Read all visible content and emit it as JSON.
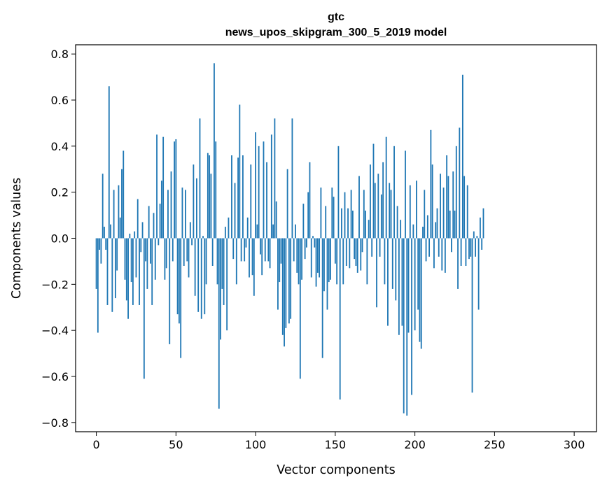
{
  "chart_data": {
    "type": "bar",
    "title": "gtc",
    "subtitle": "news_upos_skipgram_300_5_2019 model",
    "xlabel": "Vector components",
    "ylabel": "Components values",
    "xlim": [
      -13,
      314
    ],
    "ylim": [
      -0.84,
      0.84
    ],
    "xticks": [
      0,
      50,
      100,
      150,
      200,
      250,
      300
    ],
    "yticks": [
      -0.8,
      -0.6,
      -0.4,
      -0.2,
      0.0,
      0.2,
      0.4,
      0.6,
      0.8
    ],
    "ytick_labels": [
      "−0.8",
      "−0.6",
      "−0.4",
      "−0.2",
      "0.0",
      "0.2",
      "0.4",
      "0.6",
      "0.8"
    ],
    "bar_color": "#1f77b4",
    "grid": false,
    "legend": "none",
    "values": [
      -0.22,
      -0.41,
      -0.05,
      -0.11,
      0.28,
      0.05,
      -0.05,
      -0.29,
      0.66,
      0.06,
      -0.32,
      0.21,
      -0.26,
      -0.14,
      0.23,
      0.09,
      0.3,
      0.38,
      -0.18,
      -0.27,
      -0.35,
      0.02,
      -0.19,
      -0.29,
      0.03,
      -0.17,
      0.17,
      -0.29,
      -0.06,
      0.07,
      -0.61,
      -0.1,
      -0.22,
      0.14,
      -0.11,
      -0.29,
      0.11,
      -0.18,
      0.45,
      -0.03,
      0.15,
      0.25,
      0.44,
      -0.18,
      -0.13,
      0.21,
      -0.46,
      0.29,
      -0.1,
      0.42,
      0.43,
      -0.33,
      -0.37,
      -0.52,
      0.22,
      -0.12,
      0.21,
      -0.1,
      -0.17,
      0.07,
      -0.03,
      0.32,
      -0.25,
      0.26,
      -0.32,
      0.52,
      -0.35,
      0.01,
      -0.33,
      -0.2,
      0.37,
      0.36,
      0.28,
      -0.12,
      0.76,
      0.42,
      -0.2,
      -0.74,
      -0.44,
      -0.22,
      -0.29,
      0.05,
      -0.4,
      0.09,
      0.0,
      0.36,
      -0.09,
      0.24,
      -0.2,
      0.35,
      0.58,
      -0.1,
      0.36,
      -0.1,
      -0.04,
      0.09,
      -0.17,
      0.32,
      -0.16,
      -0.25,
      0.46,
      0.06,
      0.4,
      -0.07,
      -0.16,
      0.42,
      -0.1,
      0.33,
      -0.1,
      -0.13,
      0.45,
      0.06,
      0.52,
      0.16,
      -0.31,
      -0.19,
      -0.11,
      -0.42,
      -0.47,
      -0.39,
      0.3,
      -0.37,
      -0.35,
      0.52,
      -0.1,
      0.06,
      -0.15,
      -0.2,
      -0.61,
      -0.18,
      0.15,
      -0.09,
      -0.04,
      0.2,
      0.33,
      -0.17,
      0.01,
      -0.04,
      -0.21,
      -0.15,
      -0.17,
      0.22,
      -0.52,
      -0.23,
      0.14,
      -0.31,
      -0.19,
      -0.18,
      0.22,
      0.18,
      -0.11,
      -0.2,
      0.4,
      -0.7,
      0.13,
      -0.2,
      0.2,
      -0.12,
      0.13,
      -0.13,
      0.21,
      0.12,
      -0.09,
      -0.12,
      -0.15,
      0.27,
      -0.14,
      -0.06,
      0.21,
      0.12,
      -0.2,
      0.08,
      0.32,
      -0.08,
      0.41,
      0.24,
      -0.3,
      0.28,
      -0.08,
      0.19,
      0.33,
      -0.2,
      0.44,
      -0.38,
      0.24,
      0.21,
      -0.22,
      0.4,
      -0.27,
      0.14,
      -0.42,
      0.08,
      -0.38,
      -0.76,
      0.38,
      -0.77,
      -0.41,
      0.23,
      -0.68,
      0.06,
      -0.4,
      0.25,
      -0.31,
      -0.45,
      -0.48,
      0.05,
      0.21,
      -0.1,
      0.1,
      -0.08,
      0.47,
      0.32,
      -0.13,
      0.07,
      0.13,
      -0.08,
      0.28,
      -0.14,
      0.22,
      -0.15,
      0.36,
      0.27,
      0.12,
      -0.06,
      0.29,
      0.12,
      0.4,
      -0.22,
      0.48,
      -0.12,
      0.71,
      0.27,
      -0.12,
      0.23,
      -0.09,
      -0.08,
      -0.67,
      0.03,
      -0.08,
      0.01,
      -0.31,
      0.09,
      -0.05,
      0.13
    ]
  }
}
